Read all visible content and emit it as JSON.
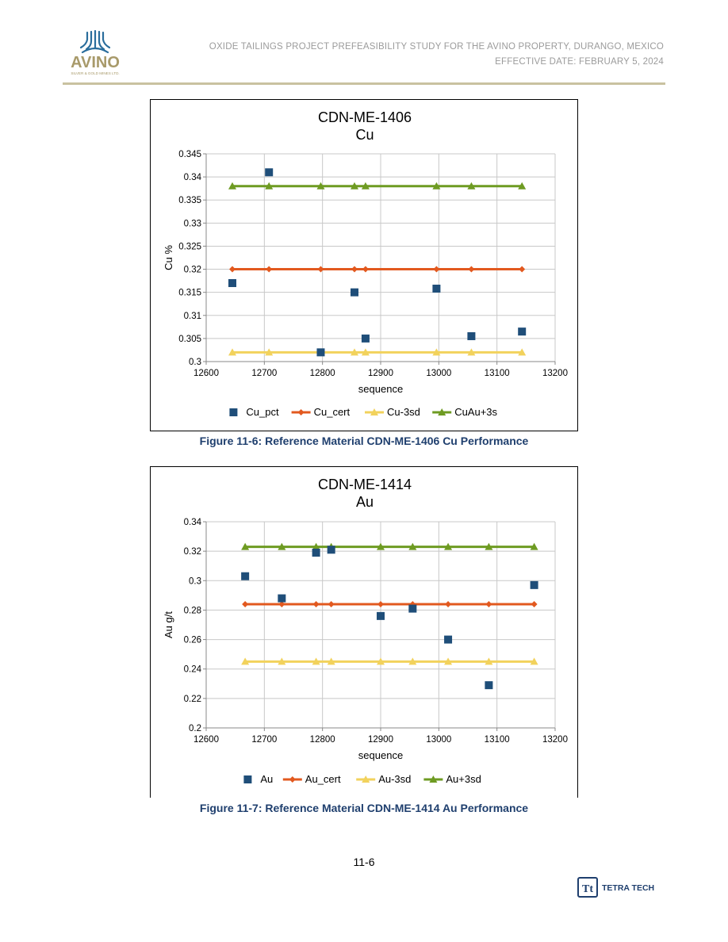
{
  "header": {
    "logo_text": "AVINO",
    "logo_subtext": "SILVER & GOLD MINES LTD.",
    "line1": "OXIDE TAILINGS PROJECT PREFEASIBILITY STUDY FOR THE AVINO PROPERTY, DURANGO, MEXICO",
    "line2": "EFFECTIVE DATE: FEBRUARY 5, 2024"
  },
  "colors": {
    "sample": "#1f4e79",
    "cert": "#e2591f",
    "minus3sd": "#f2d25c",
    "plus3sd": "#6e9b22",
    "header_rule": "#c9c2a0",
    "caption": "#1f3f6e",
    "logo_blue": "#2a6d9c",
    "logo_gold": "#a89a6a"
  },
  "chart_data": [
    {
      "type": "scatter",
      "title": "CDN-ME-1406",
      "subtitle": "Cu",
      "xlabel": "sequence",
      "ylabel": "Cu %",
      "xlim": [
        12600,
        13200
      ],
      "ylim": [
        0.3,
        0.345
      ],
      "xticks": [
        12600,
        12700,
        12800,
        12900,
        13000,
        13100,
        13200
      ],
      "yticks": [
        0.3,
        0.305,
        0.31,
        0.315,
        0.32,
        0.325,
        0.33,
        0.335,
        0.34,
        0.345
      ],
      "ydecimals": 3,
      "grid": "horizontal",
      "legend_position": "bottom",
      "x": [
        12645,
        12708,
        12797,
        12855,
        12874,
        12996,
        13056,
        13143
      ],
      "series": [
        {
          "name": "Cu_pct",
          "marker": "square",
          "line": false,
          "color_key": "sample",
          "values": [
            0.317,
            0.341,
            0.302,
            0.315,
            0.305,
            0.3158,
            0.3055,
            0.3065
          ]
        },
        {
          "name": "Cu_cert",
          "marker": "diamond",
          "line": true,
          "color_key": "cert",
          "values": [
            0.32,
            0.32,
            0.32,
            0.32,
            0.32,
            0.32,
            0.32,
            0.32
          ]
        },
        {
          "name": "Cu-3sd",
          "marker": "triangle",
          "line": true,
          "color_key": "minus3sd",
          "values": [
            0.302,
            0.302,
            0.302,
            0.302,
            0.302,
            0.302,
            0.302,
            0.302
          ]
        },
        {
          "name": "CuAu+3s",
          "marker": "triangle",
          "line": true,
          "color_key": "plus3sd",
          "values": [
            0.338,
            0.338,
            0.338,
            0.338,
            0.338,
            0.338,
            0.338,
            0.338
          ]
        }
      ]
    },
    {
      "type": "scatter",
      "title": "CDN-ME-1414",
      "subtitle": "Au",
      "xlabel": "sequence",
      "ylabel": "Au g/t",
      "xlim": [
        12600,
        13200
      ],
      "ylim": [
        0.2,
        0.34
      ],
      "xticks": [
        12600,
        12700,
        12800,
        12900,
        13000,
        13100,
        13200
      ],
      "yticks": [
        0.2,
        0.22,
        0.24,
        0.26,
        0.28,
        0.3,
        0.32,
        0.34
      ],
      "ydecimals": 2,
      "grid": "horizontal",
      "legend_position": "bottom",
      "x": [
        12667,
        12730,
        12789,
        12815,
        12900,
        12955,
        13016,
        13086,
        13164
      ],
      "series": [
        {
          "name": "Au",
          "marker": "square",
          "line": false,
          "color_key": "sample",
          "values": [
            0.303,
            0.288,
            0.319,
            0.321,
            0.276,
            0.281,
            0.26,
            0.229,
            0.297
          ]
        },
        {
          "name": "Au_cert",
          "marker": "diamond",
          "line": true,
          "color_key": "cert",
          "values": [
            0.284,
            0.284,
            0.284,
            0.284,
            0.284,
            0.284,
            0.284,
            0.284,
            0.284
          ]
        },
        {
          "name": "Au-3sd",
          "marker": "triangle",
          "line": true,
          "color_key": "minus3sd",
          "values": [
            0.245,
            0.245,
            0.245,
            0.245,
            0.245,
            0.245,
            0.245,
            0.245,
            0.245
          ]
        },
        {
          "name": "Au+3sd",
          "marker": "triangle",
          "line": true,
          "color_key": "plus3sd",
          "values": [
            0.323,
            0.323,
            0.323,
            0.323,
            0.323,
            0.323,
            0.323,
            0.323,
            0.323
          ]
        }
      ]
    }
  ],
  "captions": [
    "Figure 11-6: Reference Material CDN-ME-1406 Cu Performance",
    "Figure 11-7: Reference Material CDN-ME-1414 Au Performance"
  ],
  "page_number": "11-6",
  "footer_logo_text": "TETRA TECH",
  "footer_logo_mark": "Tt"
}
